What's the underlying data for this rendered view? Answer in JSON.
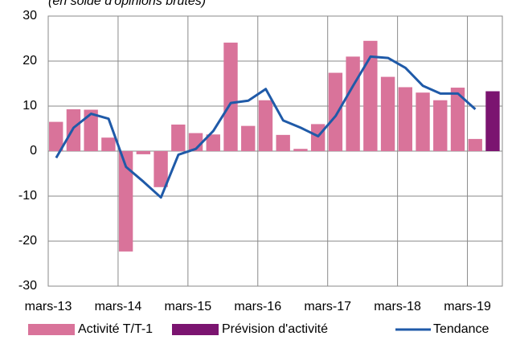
{
  "chart_data": {
    "type": "bar",
    "subtitle": "(en solde d'opinions brutes)",
    "categories": [
      "mars-13",
      null,
      null,
      null,
      "mars-14",
      null,
      null,
      null,
      "mars-15",
      null,
      null,
      null,
      "mars-16",
      null,
      null,
      null,
      "mars-17",
      null,
      null,
      null,
      "mars-18",
      null,
      null,
      null,
      "mars-19",
      null
    ],
    "series": [
      {
        "name": "Activité T/T-1",
        "type": "bar",
        "color": "#d9739a",
        "values": [
          6.5,
          9.3,
          9.2,
          3,
          -22.3,
          -0.7,
          -8,
          5.9,
          4,
          3.7,
          24.1,
          5.6,
          11.3,
          3.6,
          0.5,
          6,
          17.4,
          21,
          24.5,
          16.5,
          14.2,
          13,
          11.3,
          14.1,
          2.7,
          null
        ]
      },
      {
        "name": "Prévision d'activité",
        "type": "bar",
        "color": "#7b1470",
        "values": [
          null,
          null,
          null,
          null,
          null,
          null,
          null,
          null,
          null,
          null,
          null,
          null,
          null,
          null,
          null,
          null,
          null,
          null,
          null,
          null,
          null,
          null,
          null,
          null,
          null,
          13.3
        ]
      },
      {
        "name": "Tendance",
        "type": "line",
        "color": "#1f5aa8",
        "values": [
          -1.5,
          5.2,
          8.3,
          7.2,
          -3.5,
          -6.8,
          -10.3,
          -0.8,
          0.5,
          4.5,
          10.7,
          11.2,
          13.8,
          6.8,
          5.2,
          3.3,
          7.8,
          14.5,
          21,
          20.7,
          18.5,
          14.5,
          12.8,
          12.8,
          9.3,
          null
        ]
      }
    ],
    "ylim": [
      -30,
      30
    ],
    "yticks": [
      -30,
      -20,
      -10,
      0,
      10,
      20,
      30
    ],
    "grid": true,
    "legend": "bottom"
  }
}
